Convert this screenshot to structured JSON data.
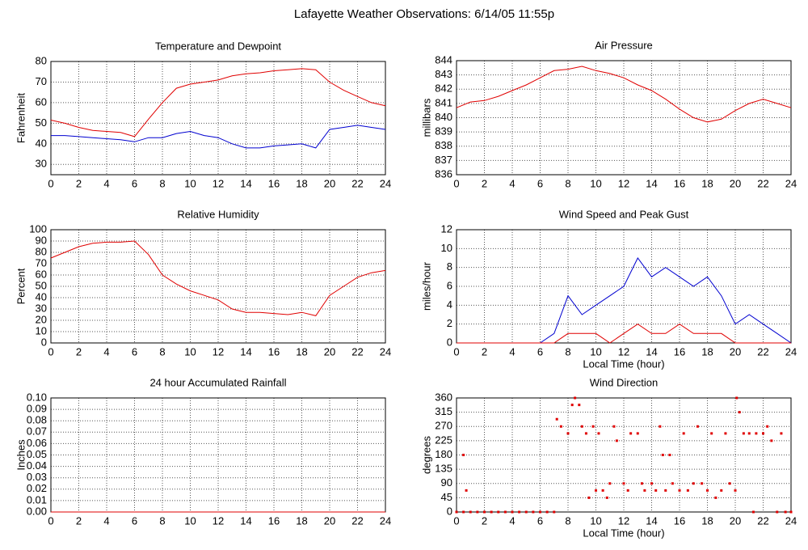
{
  "title": "Lafayette Weather Observations: 6/14/05 11:55p",
  "chart_data": [
    {
      "type": "line",
      "title": "Temperature and Dewpoint",
      "ylabel": "Fahrenheit",
      "x": [
        0,
        1,
        2,
        3,
        4,
        5,
        6,
        7,
        8,
        9,
        10,
        11,
        12,
        13,
        14,
        15,
        16,
        17,
        18,
        19,
        20,
        21,
        22,
        23,
        24
      ],
      "series": [
        {
          "color": "#e00000",
          "values": [
            51.5,
            50,
            48,
            46.5,
            46,
            45.5,
            43.5,
            52,
            60,
            67,
            69,
            70,
            71,
            73,
            74,
            74.5,
            75.5,
            76,
            76.5,
            76,
            70,
            66,
            63,
            60,
            58.5
          ]
        },
        {
          "color": "#0000d0",
          "values": [
            44,
            44,
            43.5,
            43,
            42.5,
            42,
            41,
            43,
            43,
            45,
            46,
            44,
            43,
            40,
            38,
            38,
            39,
            39.5,
            40,
            38,
            47,
            48,
            49,
            48,
            47
          ]
        }
      ],
      "xlim": [
        0,
        24
      ],
      "xticks": [
        0,
        2,
        4,
        6,
        8,
        10,
        12,
        14,
        16,
        18,
        20,
        22,
        24
      ],
      "ylim": [
        25,
        80
      ],
      "yticks": [
        30,
        40,
        50,
        60,
        70,
        80
      ],
      "grid": true
    },
    {
      "type": "line",
      "title": "Relative Humidity",
      "ylabel": "Percent",
      "x": [
        0,
        1,
        2,
        3,
        4,
        5,
        6,
        7,
        8,
        9,
        10,
        11,
        12,
        13,
        14,
        15,
        16,
        17,
        18,
        19,
        20,
        21,
        22,
        23,
        24
      ],
      "series": [
        {
          "color": "#e00000",
          "values": [
            75,
            80,
            85,
            88,
            89,
            89,
            90,
            78,
            60,
            52,
            46,
            42,
            38,
            30,
            27,
            27,
            26,
            25,
            27,
            24,
            42,
            50,
            58,
            62,
            64
          ]
        }
      ],
      "xlim": [
        0,
        24
      ],
      "xticks": [
        0,
        2,
        4,
        6,
        8,
        10,
        12,
        14,
        16,
        18,
        20,
        22,
        24
      ],
      "ylim": [
        0,
        100
      ],
      "yticks": [
        0,
        10,
        20,
        30,
        40,
        50,
        60,
        70,
        80,
        90,
        100
      ],
      "grid": true
    },
    {
      "type": "line",
      "title": "24 hour Accumulated Rainfall",
      "ylabel": "Inches",
      "x": [
        0,
        1,
        2,
        3,
        4,
        5,
        6,
        7,
        8,
        9,
        10,
        11,
        12,
        13,
        14,
        15,
        16,
        17,
        18,
        19,
        20,
        21,
        22,
        23,
        24
      ],
      "series": [
        {
          "color": "#e00000",
          "values": [
            0,
            0,
            0,
            0,
            0,
            0,
            0,
            0,
            0,
            0,
            0,
            0,
            0,
            0,
            0,
            0,
            0,
            0,
            0,
            0,
            0,
            0,
            0,
            0,
            0
          ]
        }
      ],
      "xlim": [
        0,
        24
      ],
      "xticks": [
        0,
        2,
        4,
        6,
        8,
        10,
        12,
        14,
        16,
        18,
        20,
        22,
        24
      ],
      "ylim": [
        0,
        0.1
      ],
      "yticks": [
        {
          "value": 0,
          "label": "0.00"
        },
        0.01,
        0.02,
        0.03,
        0.04,
        0.05,
        0.06,
        0.07,
        0.08,
        0.09,
        {
          "value": 0.1,
          "label": "0.10"
        }
      ],
      "grid": true
    },
    {
      "type": "line",
      "title": "Air Pressure",
      "ylabel": "millibars",
      "x": [
        0,
        1,
        2,
        3,
        4,
        5,
        6,
        7,
        8,
        9,
        10,
        11,
        12,
        13,
        14,
        15,
        16,
        17,
        18,
        19,
        20,
        21,
        22,
        23,
        24
      ],
      "series": [
        {
          "color": "#e00000",
          "values": [
            840.7,
            841.1,
            841.2,
            841.5,
            841.9,
            842.3,
            842.8,
            843.3,
            843.4,
            843.6,
            843.3,
            843.1,
            842.8,
            842.3,
            841.9,
            841.3,
            840.6,
            840.0,
            839.7,
            839.9,
            840.5,
            841.0,
            841.3,
            841.0,
            840.7
          ]
        }
      ],
      "xlim": [
        0,
        24
      ],
      "xticks": [
        0,
        2,
        4,
        6,
        8,
        10,
        12,
        14,
        16,
        18,
        20,
        22,
        24
      ],
      "ylim": [
        836,
        844
      ],
      "yticks": [
        836,
        837,
        838,
        839,
        840,
        841,
        842,
        843,
        844
      ],
      "grid": true
    },
    {
      "type": "line",
      "title": "Wind Speed and Peak Gust",
      "ylabel": "miles/hour",
      "xlabel": "Local Time (hour)",
      "x": [
        0,
        1,
        2,
        3,
        4,
        5,
        6,
        7,
        8,
        9,
        10,
        11,
        12,
        13,
        14,
        15,
        16,
        17,
        18,
        19,
        20,
        21,
        22,
        23,
        24
      ],
      "series": [
        {
          "color": "#0000d0",
          "values": [
            0,
            0,
            0,
            0,
            0,
            0,
            0,
            1,
            5,
            3,
            4,
            5,
            6,
            9,
            7,
            8,
            7,
            6,
            7,
            5,
            2,
            3,
            2,
            1,
            0
          ]
        },
        {
          "color": "#e00000",
          "values": [
            0,
            0,
            0,
            0,
            0,
            0,
            0,
            0,
            1,
            1,
            1,
            0,
            1,
            2,
            1,
            1,
            2,
            1,
            1,
            1,
            0,
            0,
            0,
            0,
            0
          ]
        }
      ],
      "xlim": [
        0,
        24
      ],
      "xticks": [
        0,
        2,
        4,
        6,
        8,
        10,
        12,
        14,
        16,
        18,
        20,
        22,
        24
      ],
      "ylim": [
        0,
        12
      ],
      "yticks": [
        0,
        2,
        4,
        6,
        8,
        10,
        12
      ],
      "grid": true
    },
    {
      "type": "scatter",
      "title": "Wind Direction",
      "ylabel": "degrees",
      "xlabel": "Local Time (hour)",
      "color": "#e00000",
      "x": [
        0,
        0.5,
        0.5,
        0.7,
        1,
        1.5,
        2,
        2.5,
        3,
        3.5,
        4,
        4.5,
        5,
        5.5,
        6,
        6.5,
        7,
        7.2,
        7.5,
        8,
        8.3,
        8.5,
        8.8,
        9,
        9.3,
        9.5,
        9.8,
        10,
        10.2,
        10.5,
        10.8,
        11,
        11.3,
        11.5,
        12,
        12.3,
        12.5,
        13,
        13.3,
        13.5,
        14,
        14.3,
        14.6,
        14.8,
        15,
        15.3,
        15.5,
        16,
        16.3,
        16.6,
        17,
        17.3,
        17.6,
        18,
        18.3,
        18.6,
        19,
        19.3,
        19.6,
        20,
        20.1,
        20.3,
        20.6,
        21,
        21.3,
        21.5,
        22,
        22.3,
        22.6,
        23,
        23.3,
        23.6,
        24
      ],
      "values": [
        0,
        0,
        180,
        68,
        0,
        0,
        0,
        0,
        0,
        0,
        0,
        0,
        0,
        0,
        0,
        0,
        0,
        293,
        270,
        248,
        338,
        360,
        338,
        270,
        248,
        45,
        270,
        68,
        248,
        68,
        45,
        90,
        270,
        225,
        90,
        68,
        248,
        248,
        90,
        68,
        90,
        68,
        270,
        180,
        68,
        180,
        90,
        68,
        248,
        68,
        90,
        270,
        90,
        68,
        248,
        45,
        68,
        248,
        90,
        68,
        360,
        315,
        248,
        248,
        0,
        248,
        248,
        270,
        225,
        0,
        248,
        0,
        0
      ],
      "xlim": [
        0,
        24
      ],
      "xticks": [
        0,
        2,
        4,
        6,
        8,
        10,
        12,
        14,
        16,
        18,
        20,
        22,
        24
      ],
      "ylim": [
        0,
        360
      ],
      "yticks": [
        0,
        45,
        90,
        135,
        180,
        225,
        270,
        315,
        360
      ],
      "grid": true
    }
  ]
}
